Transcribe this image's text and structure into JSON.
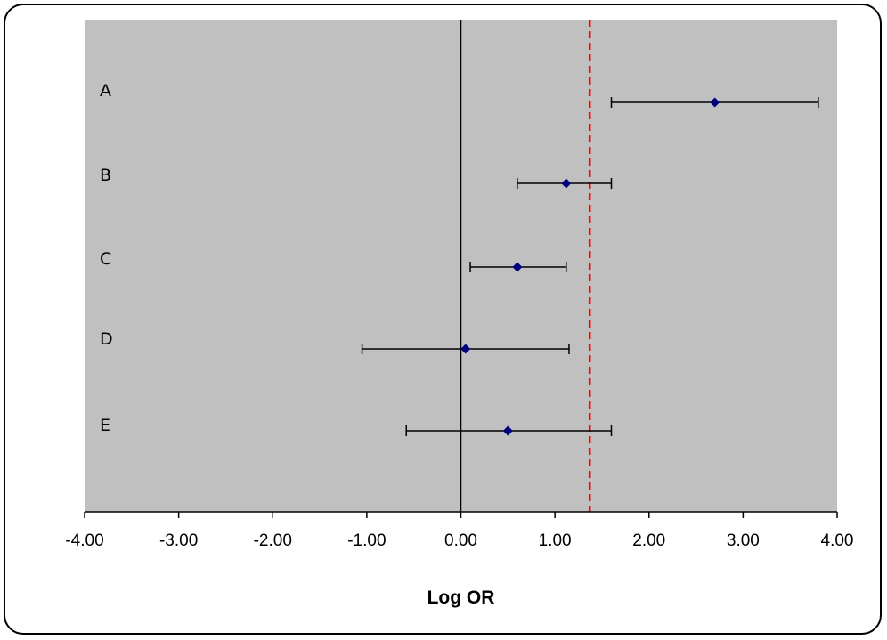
{
  "chart_data": {
    "type": "scatter",
    "title": "",
    "xlabel": "Log OR",
    "xlim": [
      -4,
      4
    ],
    "x_ticks": [
      "-4.00",
      "-3.00",
      "-2.00",
      "-1.00",
      "0.00",
      "1.00",
      "2.00",
      "3.00",
      "4.00"
    ],
    "categories": [
      "A",
      "B",
      "C",
      "D",
      "E"
    ],
    "points": [
      {
        "label": "A",
        "estimate": 2.7,
        "lower": 1.6,
        "upper": 3.8
      },
      {
        "label": "B",
        "estimate": 1.12,
        "lower": 0.6,
        "upper": 1.6
      },
      {
        "label": "C",
        "estimate": 0.6,
        "lower": 0.1,
        "upper": 1.12
      },
      {
        "label": "D",
        "estimate": 0.05,
        "lower": -1.05,
        "upper": 1.15
      },
      {
        "label": "E",
        "estimate": 0.5,
        "lower": -0.58,
        "upper": 1.6
      }
    ],
    "reference_line": 0,
    "pooled_line": 1.37,
    "grid": false,
    "colors": {
      "plot_background": "#c0c0c0",
      "marker": "#00007f",
      "pooled_line": "#ff0000",
      "error_bar": "#000000"
    }
  }
}
